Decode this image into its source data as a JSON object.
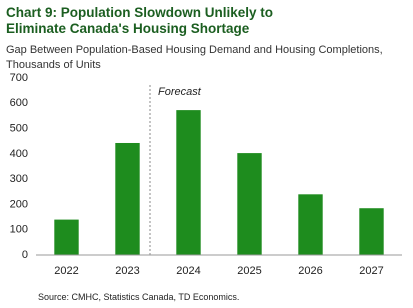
{
  "chart_data": {
    "type": "bar",
    "title": "Chart 9: Population Slowdown Unlikely to Eliminate Canada's Housing Shortage",
    "subtitle": "Gap Between Population-Based Housing Demand and Housing Completions, Thousands of Units",
    "categories": [
      "2022",
      "2023",
      "2024",
      "2025",
      "2026",
      "2027"
    ],
    "values": [
      140,
      443,
      573,
      403,
      240,
      185
    ],
    "color": "#1e8c1e",
    "ylim": [
      0,
      700
    ],
    "yticks": [
      0,
      100,
      200,
      300,
      400,
      500,
      600,
      700
    ],
    "grid": false,
    "annotation": "Forecast",
    "source": "Source: CMHC, Statistics Canada, TD Economics."
  }
}
